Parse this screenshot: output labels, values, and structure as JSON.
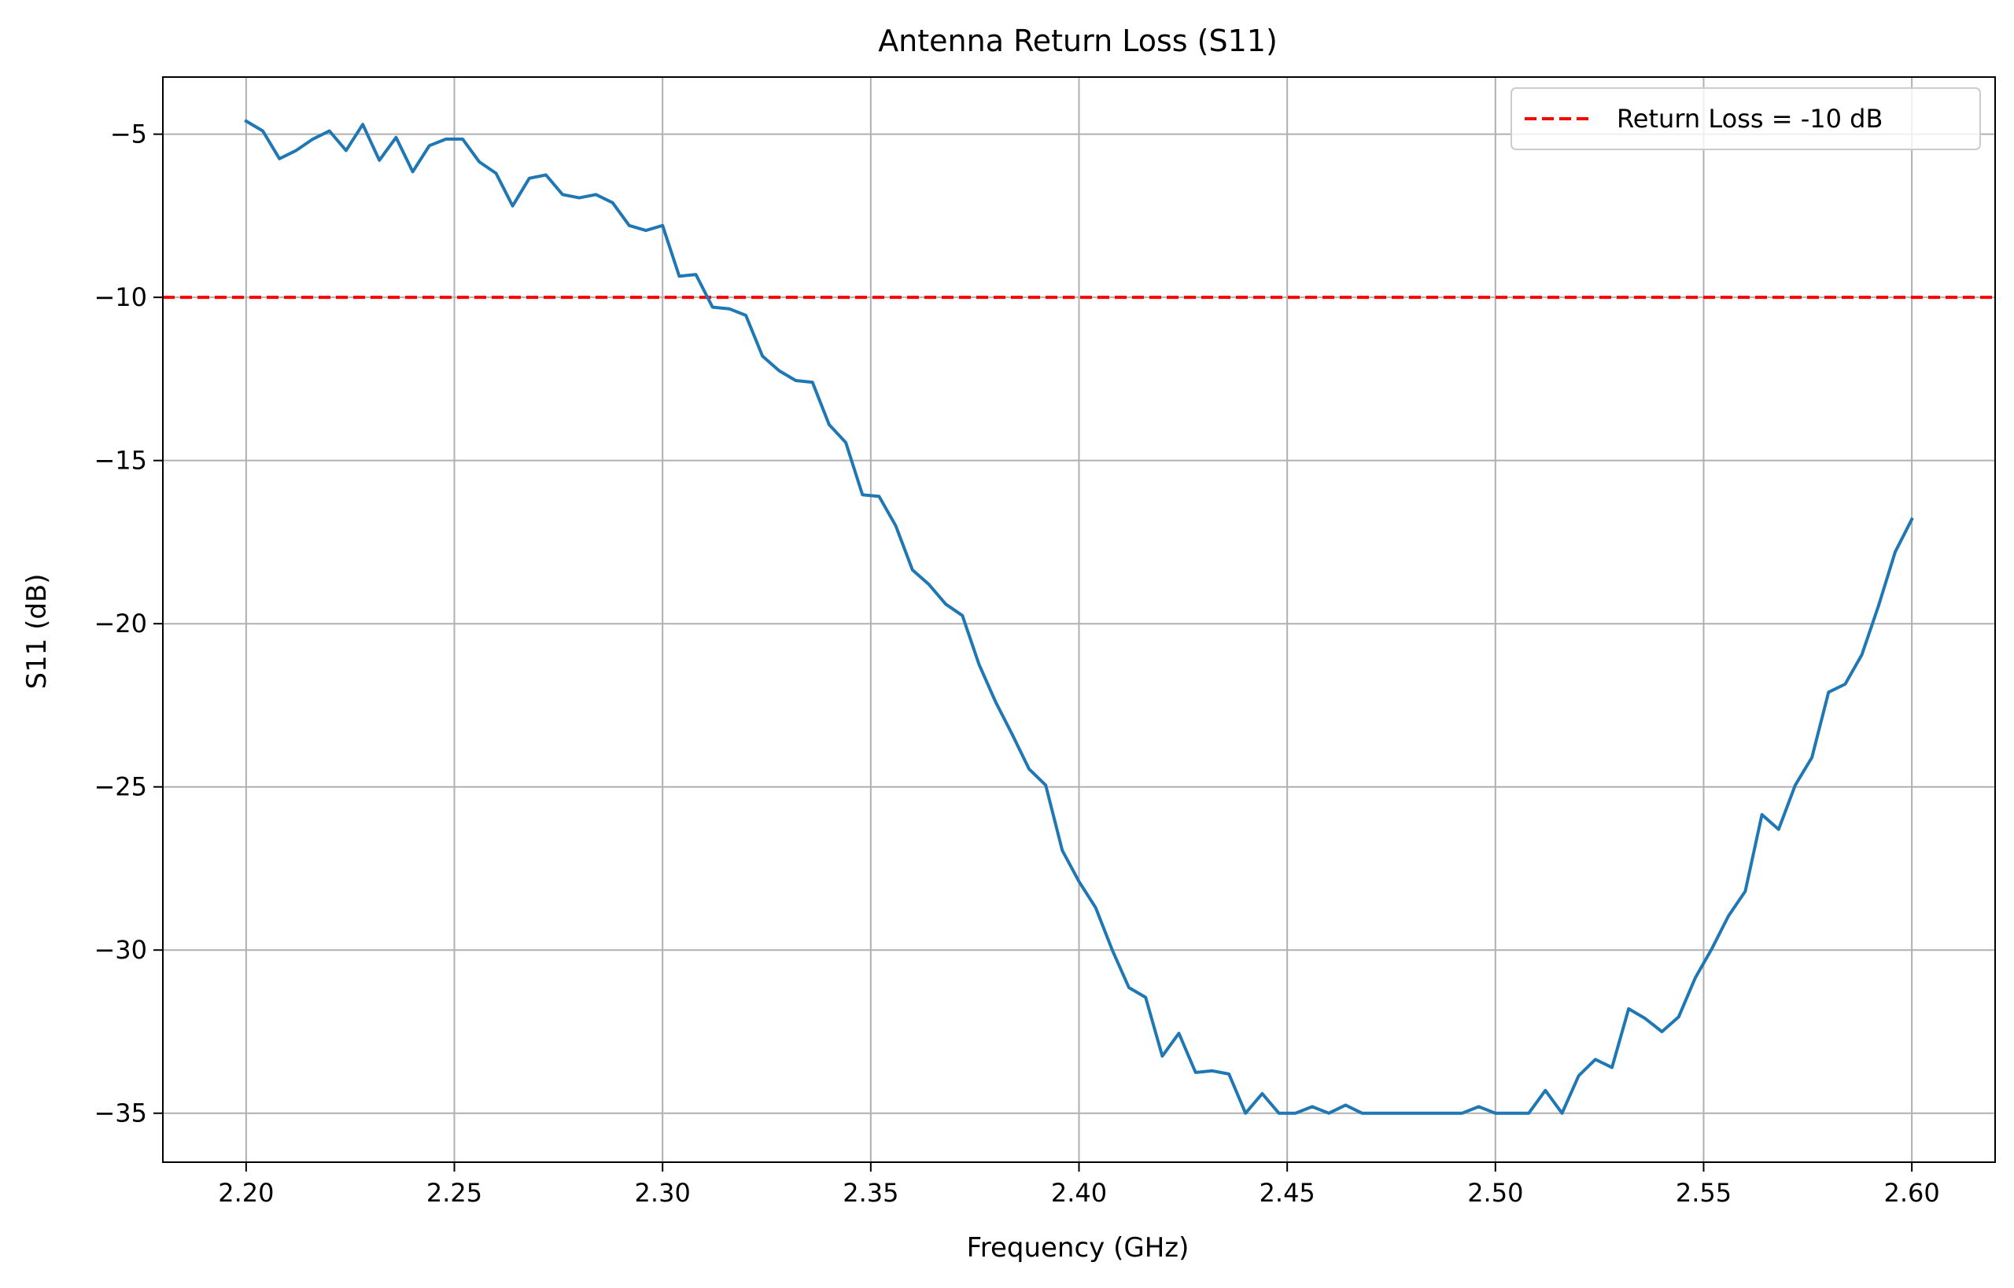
{
  "chart_data": {
    "type": "line",
    "title": "Antenna Return Loss (S11)",
    "xlabel": "Frequency (GHz)",
    "ylabel": "S11 (dB)",
    "xlim": [
      2.18,
      2.62
    ],
    "ylim": [
      -36.5,
      -3.25
    ],
    "xticks": [
      "2.20",
      "2.25",
      "2.30",
      "2.35",
      "2.40",
      "2.45",
      "2.50",
      "2.55",
      "2.60"
    ],
    "xtick_values": [
      2.2,
      2.25,
      2.3,
      2.35,
      2.4,
      2.45,
      2.5,
      2.55,
      2.6
    ],
    "yticks": [
      "−5",
      "−10",
      "−15",
      "−20",
      "−25",
      "−30",
      "−35"
    ],
    "ytick_values": [
      -5,
      -10,
      -15,
      -20,
      -25,
      -30,
      -35
    ],
    "grid": true,
    "legend_position": "top-right",
    "series": [
      {
        "color": "#1f77b4",
        "x": [
          2.2,
          2.204,
          2.208,
          2.212,
          2.216,
          2.22,
          2.224,
          2.228,
          2.232,
          2.236,
          2.24,
          2.244,
          2.248,
          2.252,
          2.256,
          2.26,
          2.264,
          2.268,
          2.272,
          2.276,
          2.28,
          2.284,
          2.288,
          2.292,
          2.296,
          2.3,
          2.304,
          2.308,
          2.312,
          2.316,
          2.32,
          2.324,
          2.328,
          2.332,
          2.336,
          2.34,
          2.344,
          2.348,
          2.352,
          2.356,
          2.36,
          2.364,
          2.368,
          2.372,
          2.376,
          2.38,
          2.384,
          2.388,
          2.392,
          2.396,
          2.4,
          2.404,
          2.408,
          2.412,
          2.416,
          2.42,
          2.424,
          2.428,
          2.432,
          2.436,
          2.44,
          2.444,
          2.448,
          2.452,
          2.456,
          2.46,
          2.464,
          2.468,
          2.472,
          2.476,
          2.48,
          2.484,
          2.488,
          2.492,
          2.496,
          2.5,
          2.504,
          2.508,
          2.512,
          2.516,
          2.52,
          2.524,
          2.528,
          2.532,
          2.536,
          2.54,
          2.544,
          2.548,
          2.552,
          2.556,
          2.56,
          2.564,
          2.568,
          2.572,
          2.576,
          2.58,
          2.584,
          2.588,
          2.592,
          2.596,
          2.6
        ],
        "y": [
          -4.6,
          -4.9,
          -5.75,
          -5.5,
          -5.15,
          -4.9,
          -5.5,
          -4.7,
          -5.8,
          -5.1,
          -6.15,
          -5.35,
          -5.15,
          -5.15,
          -5.85,
          -6.2,
          -7.2,
          -6.35,
          -6.25,
          -6.85,
          -6.95,
          -6.85,
          -7.1,
          -7.8,
          -7.95,
          -7.8,
          -9.35,
          -9.3,
          -10.3,
          -10.35,
          -10.55,
          -11.8,
          -12.25,
          -12.55,
          -12.6,
          -13.9,
          -14.45,
          -16.05,
          -16.1,
          -17.0,
          -18.35,
          -18.8,
          -19.4,
          -19.75,
          -21.25,
          -22.4,
          -23.4,
          -24.45,
          -24.95,
          -26.95,
          -27.9,
          -28.7,
          -30.0,
          -31.15,
          -31.45,
          -33.25,
          -32.55,
          -33.75,
          -33.7,
          -33.8,
          -35.0,
          -34.4,
          -35.0,
          -35.0,
          -34.8,
          -35.0,
          -34.75,
          -35.0,
          -35.0,
          -35.0,
          -35.0,
          -35.0,
          -35.0,
          -35.0,
          -34.8,
          -35.0,
          -35.0,
          -35.0,
          -34.3,
          -35.0,
          -33.85,
          -33.35,
          -33.6,
          -31.8,
          -32.1,
          -32.5,
          -32.05,
          -30.85,
          -29.95,
          -28.95,
          -28.2,
          -25.85,
          -26.3,
          -24.95,
          -24.1,
          -22.1,
          -21.85,
          -20.95,
          -19.45,
          -17.8,
          -16.8
        ]
      }
    ],
    "reference_line": {
      "name": "Return Loss = -10 dB",
      "y": -10,
      "color": "#ff0000",
      "style": "dashed"
    }
  }
}
